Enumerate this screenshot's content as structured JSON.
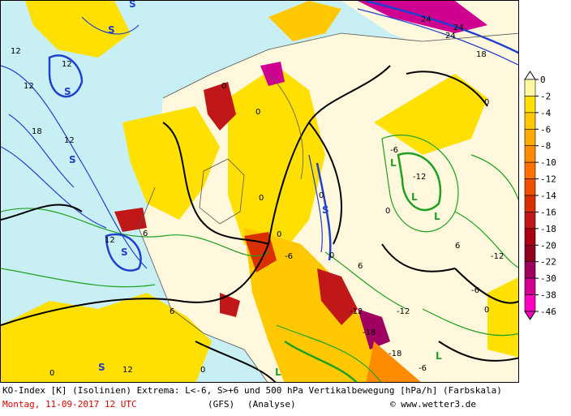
{
  "caption": {
    "line1": "KO-Index [K] (Isolinien) Extrema: L<-6, S>+6 und 500 hPa Vertikalbewegung [hPa/h] (Farbskala)",
    "date": "Montag, 11-09-2017  12 UTC",
    "model": "(GFS)",
    "analysis": "(Analyse)",
    "copyright": "© www.wetter3.de"
  },
  "legend": {
    "ticks": [
      "0",
      "-2",
      "-4",
      "-6",
      "-8",
      "-10",
      "-12",
      "-14",
      "-16",
      "-18",
      "-20",
      "-22",
      "-30",
      "-38",
      "-46"
    ],
    "colors": [
      "#ffffff",
      "#fff8a0",
      "#ffe000",
      "#ffc800",
      "#ffa800",
      "#ff8c00",
      "#ff7000",
      "#f05000",
      "#d83000",
      "#c01818",
      "#a80010",
      "#900020",
      "#a00060",
      "#d00090",
      "#ff00c0"
    ]
  },
  "map": {
    "contour_labels": [
      "12",
      "12",
      "12",
      "18",
      "12",
      "12",
      "6",
      "0",
      "0",
      "0",
      "0",
      "0",
      "0",
      "0",
      "-6",
      "-6",
      "-6",
      "-12",
      "-12",
      "-12",
      "-18",
      "-18",
      "24",
      "24",
      "24",
      "18",
      "6",
      "6",
      "-6",
      "-12",
      "6",
      "12",
      "0",
      "0",
      "0",
      "0"
    ],
    "extrema": [
      "S",
      "S",
      "S",
      "S",
      "S",
      "S",
      "S",
      "L",
      "L",
      "L",
      "L",
      "L"
    ]
  }
}
